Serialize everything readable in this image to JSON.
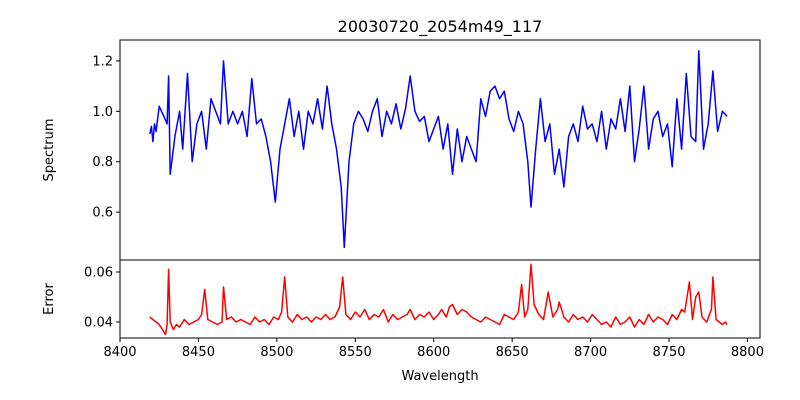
{
  "chart_data": [
    {
      "type": "line",
      "title": "20030720_2054m49_117",
      "xlabel": "",
      "ylabel": "Spectrum",
      "xlim": [
        8400,
        8808
      ],
      "ylim": [
        0.41,
        1.283
      ],
      "yticks": [
        0.6,
        0.8,
        1.0,
        1.2
      ],
      "ytick_labels": [
        "0.6",
        "0.8",
        "1.0",
        "1.2"
      ],
      "grid": false,
      "series": [
        {
          "name": "spectrum",
          "color": "#0000ff",
          "x": [
            8419,
            8420,
            8421,
            8422,
            8423,
            8425,
            8428,
            8430,
            8431,
            8432,
            8435,
            8438,
            8440,
            8443,
            8446,
            8449,
            8452,
            8455,
            8458,
            8461,
            8464,
            8466,
            8469,
            8472,
            8475,
            8478,
            8481,
            8484,
            8487,
            8490,
            8493,
            8496,
            8499,
            8502,
            8505,
            8508,
            8511,
            8514,
            8517,
            8520,
            8523,
            8526,
            8529,
            8532,
            8535,
            8538,
            8541,
            8543,
            8546,
            8549,
            8552,
            8555,
            8558,
            8561,
            8564,
            8567,
            8570,
            8573,
            8576,
            8579,
            8582,
            8585,
            8588,
            8591,
            8594,
            8597,
            8600,
            8603,
            8606,
            8609,
            8612,
            8615,
            8618,
            8621,
            8624,
            8627,
            8630,
            8633,
            8636,
            8639,
            8642,
            8645,
            8648,
            8651,
            8654,
            8657,
            8660,
            8662,
            8665,
            8668,
            8671,
            8674,
            8677,
            8680,
            8683,
            8686,
            8689,
            8692,
            8695,
            8698,
            8701,
            8704,
            8707,
            8710,
            8713,
            8716,
            8719,
            8722,
            8725,
            8728,
            8731,
            8734,
            8737,
            8740,
            8743,
            8746,
            8749,
            8752,
            8755,
            8758,
            8761,
            8764,
            8767,
            8769,
            8772,
            8775,
            8778,
            8781,
            8784,
            8787
          ],
          "y": [
            0.91,
            0.94,
            0.88,
            0.95,
            0.92,
            1.02,
            0.98,
            0.95,
            1.14,
            0.75,
            0.9,
            1.0,
            0.85,
            1.15,
            0.8,
            0.95,
            1.0,
            0.85,
            1.05,
            1.0,
            0.95,
            1.2,
            0.95,
            1.0,
            0.95,
            1.0,
            0.9,
            1.13,
            0.95,
            0.97,
            0.9,
            0.8,
            0.64,
            0.85,
            0.95,
            1.05,
            0.9,
            1.0,
            0.85,
            1.0,
            0.95,
            1.05,
            0.93,
            1.1,
            0.95,
            0.85,
            0.7,
            0.46,
            0.8,
            0.95,
            1.0,
            0.97,
            0.92,
            1.0,
            1.05,
            0.9,
            1.0,
            0.95,
            1.03,
            0.93,
            1.01,
            1.14,
            1.0,
            0.96,
            0.98,
            0.88,
            0.93,
            0.98,
            0.85,
            0.95,
            0.75,
            0.93,
            0.8,
            0.9,
            0.85,
            0.8,
            1.05,
            0.98,
            1.08,
            1.1,
            1.05,
            1.08,
            0.97,
            0.92,
            1.0,
            0.95,
            0.8,
            0.62,
            0.85,
            1.05,
            0.88,
            0.95,
            0.75,
            0.85,
            0.7,
            0.9,
            0.95,
            0.88,
            1.02,
            0.93,
            0.95,
            0.88,
            1.0,
            0.85,
            0.97,
            0.93,
            1.05,
            0.92,
            1.1,
            0.8,
            0.93,
            1.1,
            0.85,
            0.97,
            1.0,
            0.9,
            0.95,
            0.78,
            1.05,
            0.85,
            1.15,
            0.9,
            0.88,
            1.24,
            0.85,
            0.95,
            1.16,
            0.92,
            1.0,
            0.98
          ]
        }
      ]
    },
    {
      "type": "line",
      "title": "",
      "xlabel": "Wavelength",
      "ylabel": "Error",
      "xlim": [
        8400,
        8808
      ],
      "ylim": [
        0.0336,
        0.0648
      ],
      "xticks": [
        8400,
        8450,
        8500,
        8550,
        8600,
        8650,
        8700,
        8750,
        8800
      ],
      "xtick_labels": [
        "8400",
        "8450",
        "8500",
        "8550",
        "8600",
        "8650",
        "8700",
        "8750",
        "8800"
      ],
      "yticks": [
        0.04,
        0.06
      ],
      "ytick_labels": [
        "0.04",
        "0.06"
      ],
      "grid": false,
      "series": [
        {
          "name": "error",
          "color": "#ff0000",
          "x": [
            8419,
            8421,
            8423,
            8425,
            8427,
            8429,
            8430,
            8431,
            8432,
            8434,
            8436,
            8438,
            8441,
            8444,
            8447,
            8450,
            8452,
            8454,
            8456,
            8459,
            8462,
            8465,
            8466,
            8468,
            8471,
            8474,
            8477,
            8480,
            8483,
            8486,
            8489,
            8492,
            8495,
            8498,
            8501,
            8503,
            8505,
            8507,
            8510,
            8513,
            8516,
            8519,
            8522,
            8525,
            8528,
            8531,
            8534,
            8537,
            8540,
            8542,
            8544,
            8547,
            8550,
            8553,
            8556,
            8559,
            8562,
            8565,
            8568,
            8571,
            8574,
            8577,
            8580,
            8583,
            8585,
            8588,
            8591,
            8594,
            8597,
            8600,
            8603,
            8605,
            8608,
            8610,
            8612,
            8615,
            8618,
            8621,
            8624,
            8627,
            8630,
            8633,
            8636,
            8639,
            8642,
            8645,
            8648,
            8651,
            8654,
            8656,
            8658,
            8660,
            8662,
            8664,
            8667,
            8670,
            8673,
            8676,
            8679,
            8680,
            8683,
            8686,
            8689,
            8692,
            8695,
            8698,
            8701,
            8704,
            8707,
            8710,
            8713,
            8716,
            8719,
            8722,
            8725,
            8728,
            8731,
            8734,
            8737,
            8740,
            8743,
            8746,
            8749,
            8752,
            8755,
            8758,
            8760,
            8763,
            8765,
            8767,
            8769,
            8771,
            8774,
            8777,
            8778,
            8780,
            8782,
            8784,
            8786,
            8787
          ],
          "y": [
            0.042,
            0.041,
            0.04,
            0.039,
            0.037,
            0.035,
            0.039,
            0.061,
            0.04,
            0.037,
            0.039,
            0.038,
            0.041,
            0.039,
            0.04,
            0.041,
            0.043,
            0.053,
            0.041,
            0.04,
            0.039,
            0.04,
            0.054,
            0.041,
            0.042,
            0.04,
            0.041,
            0.04,
            0.039,
            0.042,
            0.04,
            0.041,
            0.039,
            0.042,
            0.041,
            0.044,
            0.058,
            0.042,
            0.04,
            0.043,
            0.041,
            0.042,
            0.04,
            0.042,
            0.041,
            0.043,
            0.041,
            0.042,
            0.046,
            0.058,
            0.043,
            0.041,
            0.044,
            0.042,
            0.045,
            0.041,
            0.043,
            0.042,
            0.045,
            0.04,
            0.043,
            0.041,
            0.042,
            0.043,
            0.045,
            0.041,
            0.043,
            0.042,
            0.044,
            0.041,
            0.043,
            0.045,
            0.042,
            0.046,
            0.047,
            0.043,
            0.045,
            0.044,
            0.042,
            0.041,
            0.04,
            0.042,
            0.041,
            0.04,
            0.039,
            0.043,
            0.042,
            0.041,
            0.044,
            0.055,
            0.042,
            0.045,
            0.063,
            0.047,
            0.043,
            0.041,
            0.052,
            0.042,
            0.045,
            0.048,
            0.042,
            0.04,
            0.043,
            0.041,
            0.042,
            0.04,
            0.043,
            0.041,
            0.039,
            0.04,
            0.038,
            0.042,
            0.039,
            0.04,
            0.042,
            0.038,
            0.041,
            0.039,
            0.043,
            0.04,
            0.042,
            0.041,
            0.039,
            0.043,
            0.041,
            0.045,
            0.044,
            0.056,
            0.041,
            0.05,
            0.052,
            0.042,
            0.04,
            0.045,
            0.058,
            0.041,
            0.04,
            0.039,
            0.04,
            0.039
          ]
        }
      ]
    }
  ]
}
